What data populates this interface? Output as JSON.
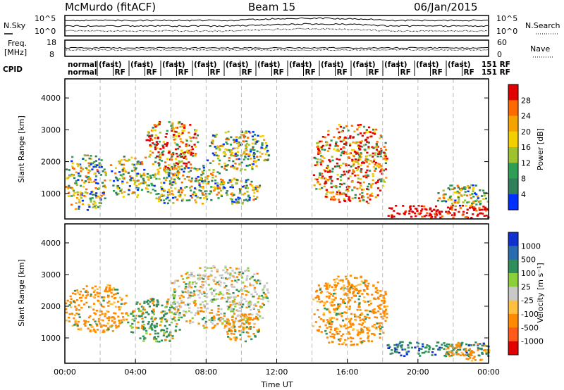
{
  "header": {
    "station": "McMurdo (fitACF)",
    "beam": "Beam 15",
    "date": "06/Jan/2015"
  },
  "noise_panel": {
    "left_label": "N.Sky",
    "right_label": "N.Search",
    "left_ticks": [
      "10^5",
      "10^0"
    ],
    "right_ticks": [
      "10^5",
      "10^0"
    ]
  },
  "freq_panel": {
    "left_label_1": "Freq.",
    "left_label_2": "[MHz]",
    "right_label": "Nave",
    "left_ticks": [
      "18",
      "8"
    ],
    "right_ticks": [
      "60",
      "0"
    ]
  },
  "cpid_panel": {
    "label": "CPID",
    "first_entries": [
      "normal",
      "normal"
    ],
    "tail": "151 RF",
    "fast_text": "(fast)",
    "rf_text": "RF"
  },
  "chart_data": [
    {
      "type": "heatmap",
      "name": "power",
      "ylabel": "Slant Range [km]",
      "xlabel": "Time UT",
      "y_ticks": [
        "1000",
        "2000",
        "3000",
        "4000"
      ],
      "ylim": [
        200,
        4600
      ],
      "xlim": [
        0,
        24
      ],
      "colorbar": {
        "label": "Power [dB]",
        "ticks": [
          "28",
          "24",
          "20",
          "16",
          "12",
          "8",
          "4"
        ],
        "colors": [
          "#e00000",
          "#ff6a00",
          "#f4a300",
          "#f2d000",
          "#9ec32f",
          "#2f9e55",
          "#2f7f5a",
          "#0030ff"
        ]
      },
      "blobs": [
        {
          "t0": 0.0,
          "t1": 2.3,
          "r0": 500,
          "r1": 2300,
          "tone": "mid"
        },
        {
          "t0": 2.5,
          "t1": 4.5,
          "r0": 900,
          "r1": 2200,
          "tone": "mid"
        },
        {
          "t0": 4.5,
          "t1": 7.5,
          "r0": 1800,
          "r1": 3300,
          "tone": "hot"
        },
        {
          "t0": 4.5,
          "t1": 9.0,
          "r0": 700,
          "r1": 1900,
          "tone": "mid"
        },
        {
          "t0": 8.0,
          "t1": 11.5,
          "r0": 1700,
          "r1": 3000,
          "tone": "mid"
        },
        {
          "t0": 8.5,
          "t1": 11.0,
          "r0": 700,
          "r1": 1500,
          "tone": "mid"
        },
        {
          "t0": 14.0,
          "t1": 18.2,
          "r0": 700,
          "r1": 3200,
          "tone": "hot"
        },
        {
          "t0": 18.2,
          "t1": 24.0,
          "r0": 250,
          "r1": 650,
          "tone": "red"
        },
        {
          "t0": 21.0,
          "t1": 24.0,
          "r0": 600,
          "r1": 1300,
          "tone": "mid"
        }
      ]
    },
    {
      "type": "heatmap",
      "name": "velocity",
      "ylabel": "Slant Range [km]",
      "xlabel": "Time UT",
      "x_ticks": [
        "00:00",
        "04:00",
        "08:00",
        "12:00",
        "16:00",
        "20:00",
        "00:00"
      ],
      "y_ticks": [
        "1000",
        "2000",
        "3000",
        "4000"
      ],
      "ylim": [
        200,
        4600
      ],
      "xlim": [
        0,
        24
      ],
      "colorbar": {
        "label": "Velocity [m s⁻¹]",
        "ticks": [
          "1000",
          "500",
          "100",
          "25",
          "-25",
          "-100",
          "-500",
          "-1000"
        ],
        "colors": [
          "#1030d0",
          "#2a6cb0",
          "#2f8f5a",
          "#8ccf3a",
          "#c8c8c8",
          "#ffc040",
          "#ff8a00",
          "#ff5a1a",
          "#e00000"
        ]
      },
      "blobs": [
        {
          "t0": 0.0,
          "t1": 3.5,
          "r0": 1200,
          "r1": 2700,
          "tone": "orange"
        },
        {
          "t0": 3.5,
          "t1": 6.5,
          "r0": 900,
          "r1": 2300,
          "tone": "green"
        },
        {
          "t0": 6.0,
          "t1": 11.5,
          "r0": 1300,
          "r1": 3300,
          "tone": "mix"
        },
        {
          "t0": 9.0,
          "t1": 11.0,
          "r0": 900,
          "r1": 1800,
          "tone": "orange"
        },
        {
          "t0": 14.0,
          "t1": 18.2,
          "r0": 800,
          "r1": 3000,
          "tone": "orange"
        },
        {
          "t0": 18.2,
          "t1": 24.0,
          "r0": 450,
          "r1": 900,
          "tone": "teal"
        },
        {
          "t0": 21.5,
          "t1": 24.0,
          "r0": 300,
          "r1": 900,
          "tone": "orange"
        }
      ]
    }
  ]
}
